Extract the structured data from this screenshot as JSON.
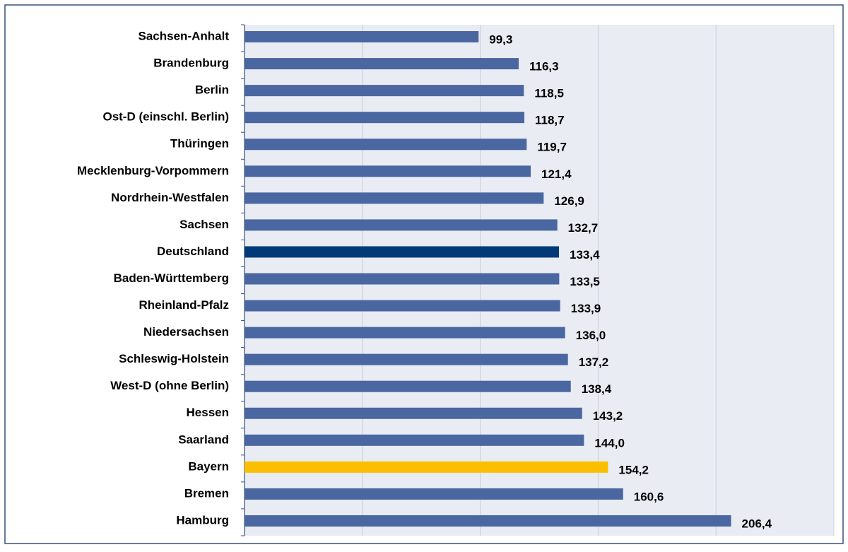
{
  "chart_data": {
    "type": "bar",
    "orientation": "horizontal",
    "categories": [
      "Sachsen-Anhalt",
      "Brandenburg",
      "Berlin",
      "Ost-D (einschl. Berlin)",
      "Thüringen",
      "Mecklenburg-Vorpommern",
      "Nordrhein-Westfalen",
      "Sachsen",
      "Deutschland",
      "Baden-Württemberg",
      "Rheinland-Pfalz",
      "Niedersachsen",
      "Schleswig-Holstein",
      "West-D (ohne Berlin)",
      "Hessen",
      "Saarland",
      "Bayern",
      "Bremen",
      "Hamburg"
    ],
    "values": [
      99.3,
      116.3,
      118.5,
      118.7,
      119.7,
      121.4,
      126.9,
      132.7,
      133.4,
      133.5,
      133.9,
      136.0,
      137.2,
      138.4,
      143.2,
      144.0,
      154.2,
      160.6,
      206.4
    ],
    "value_labels": [
      "99,3",
      "116,3",
      "118,5",
      "118,7",
      "119,7",
      "121,4",
      "126,9",
      "132,7",
      "133,4",
      "133,5",
      "133,9",
      "136,0",
      "137,2",
      "138,4",
      "143,2",
      "144,0",
      "154,2",
      "160,6",
      "206,4"
    ],
    "colors": [
      "#4a67a1",
      "#4a67a1",
      "#4a67a1",
      "#4a67a1",
      "#4a67a1",
      "#4a67a1",
      "#4a67a1",
      "#4a67a1",
      "#003a78",
      "#4a67a1",
      "#4a67a1",
      "#4a67a1",
      "#4a67a1",
      "#4a67a1",
      "#4a67a1",
      "#4a67a1",
      "#fbbf00",
      "#4a67a1",
      "#4a67a1"
    ],
    "xlim": [
      0,
      250
    ],
    "xticks": [
      0,
      50,
      100,
      150,
      200,
      250
    ],
    "grid": true
  }
}
